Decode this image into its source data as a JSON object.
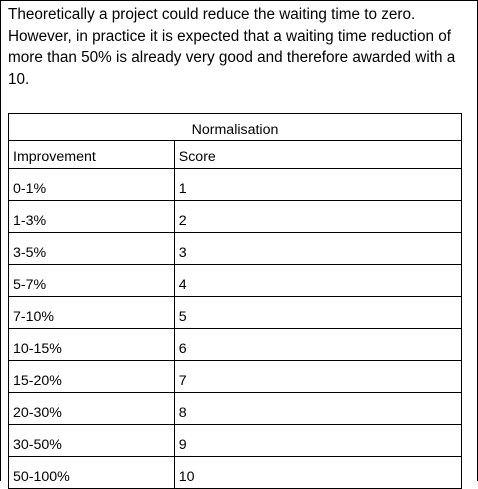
{
  "intro": {
    "text": "Theoretically a project could reduce the waiting time to zero. However, in practice it is expected that a waiting time reduction of more than 50% is already very good and therefore awarded with a 10."
  },
  "table": {
    "title": "Normalisation",
    "columns": [
      "Improvement",
      "Score"
    ],
    "rows": [
      [
        "0-1%",
        "1"
      ],
      [
        "1-3%",
        "2"
      ],
      [
        "3-5%",
        "3"
      ],
      [
        "5-7%",
        "4"
      ],
      [
        "7-10%",
        "5"
      ],
      [
        "10-15%",
        "6"
      ],
      [
        "15-20%",
        "7"
      ],
      [
        "20-30%",
        "8"
      ],
      [
        "30-50%",
        "9"
      ],
      [
        "50-100%",
        "10"
      ]
    ]
  }
}
